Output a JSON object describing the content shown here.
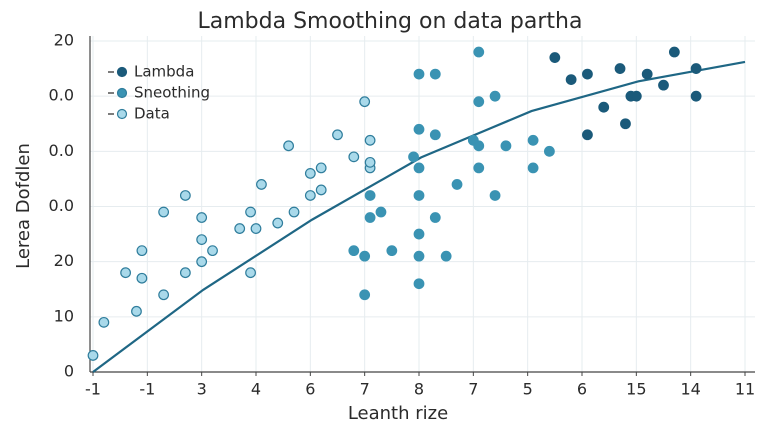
{
  "chart_data": {
    "type": "scatter",
    "title": "Lambda Smoothing on data partha",
    "xlabel": "Leanth rize",
    "ylabel": "Lerea Dofdlen",
    "xlim": [
      0,
      12
    ],
    "ylim": [
      0,
      6
    ],
    "xticks": [
      {
        "value": 0,
        "label": "-1"
      },
      {
        "value": 1,
        "label": "-1"
      },
      {
        "value": 2,
        "label": "3"
      },
      {
        "value": 3,
        "label": "4"
      },
      {
        "value": 4,
        "label": "6"
      },
      {
        "value": 5,
        "label": "7"
      },
      {
        "value": 6,
        "label": "8"
      },
      {
        "value": 7,
        "label": "7"
      },
      {
        "value": 8,
        "label": "5"
      },
      {
        "value": 9,
        "label": "6"
      },
      {
        "value": 10,
        "label": "15"
      },
      {
        "value": 11,
        "label": "14"
      },
      {
        "value": 12,
        "label": "11"
      }
    ],
    "yticks": [
      0,
      {
        "value": 1,
        "label": "10"
      },
      {
        "value": 2,
        "label": "20"
      },
      {
        "value": 3,
        "label": "0.0"
      },
      {
        "value": 4,
        "label": "0.0"
      },
      {
        "value": 5,
        "label": "0.0"
      },
      {
        "value": 6,
        "label": "20"
      }
    ],
    "grid": true,
    "legend": "upper left",
    "line": {
      "color": "#1f6785",
      "x": [
        0,
        2.03,
        4.03,
        6.04,
        8.07,
        10.04,
        12
      ],
      "values": [
        0,
        1.49,
        2.76,
        3.89,
        4.73,
        5.27,
        5.62
      ]
    },
    "series": [
      {
        "name": "Lambda",
        "color": "#1b5a7a",
        "x": [
          8.5,
          8.8,
          9.1,
          9.1,
          9.4,
          9.7,
          9.8,
          9.9,
          10.0,
          10.2,
          10.5,
          10.7,
          11.1,
          11.1
        ],
        "values": [
          5.7,
          5.3,
          5.4,
          4.3,
          4.8,
          5.5,
          4.5,
          5.0,
          5.0,
          5.4,
          5.2,
          5.8,
          5.5,
          5.0
        ]
      },
      {
        "name": "Sneothing",
        "color": "#3a93b3",
        "x": [
          4.8,
          5.0,
          5.0,
          5.1,
          5.1,
          5.3,
          5.5,
          5.9,
          6.0,
          6.0,
          6.0,
          6.0,
          6.0,
          6.0,
          6.0,
          6.3,
          6.3,
          6.3,
          6.5,
          6.7,
          7.0,
          7.1,
          7.1,
          7.1,
          7.1,
          7.4,
          7.4,
          7.6,
          8.1,
          8.1,
          8.4
        ],
        "values": [
          2.2,
          1.4,
          2.1,
          2.8,
          3.2,
          2.9,
          2.2,
          3.9,
          5.4,
          4.4,
          3.7,
          3.2,
          2.5,
          2.1,
          1.6,
          5.4,
          4.3,
          2.8,
          2.1,
          3.4,
          4.2,
          5.8,
          4.9,
          4.1,
          3.7,
          3.2,
          5.0,
          4.1,
          4.2,
          3.7,
          4.0
        ]
      },
      {
        "name": "Data",
        "color": "#a9d9ea",
        "x": [
          0.0,
          0.2,
          0.6,
          0.8,
          0.9,
          0.9,
          1.3,
          1.3,
          1.7,
          1.7,
          2.0,
          2.0,
          2.0,
          2.2,
          2.7,
          2.9,
          2.9,
          3.0,
          3.1,
          3.4,
          3.6,
          3.7,
          4.0,
          4.0,
          4.2,
          4.2,
          4.5,
          4.8,
          5.0,
          5.1,
          5.1,
          5.1
        ],
        "values": [
          0.3,
          0.9,
          1.8,
          1.1,
          2.2,
          1.7,
          1.4,
          2.9,
          1.8,
          3.2,
          2.4,
          2.8,
          2.0,
          2.2,
          2.6,
          1.8,
          2.9,
          2.6,
          3.4,
          2.7,
          4.1,
          2.9,
          3.6,
          3.2,
          3.7,
          3.3,
          4.3,
          3.9,
          4.9,
          3.7,
          4.2,
          3.8
        ]
      }
    ]
  }
}
